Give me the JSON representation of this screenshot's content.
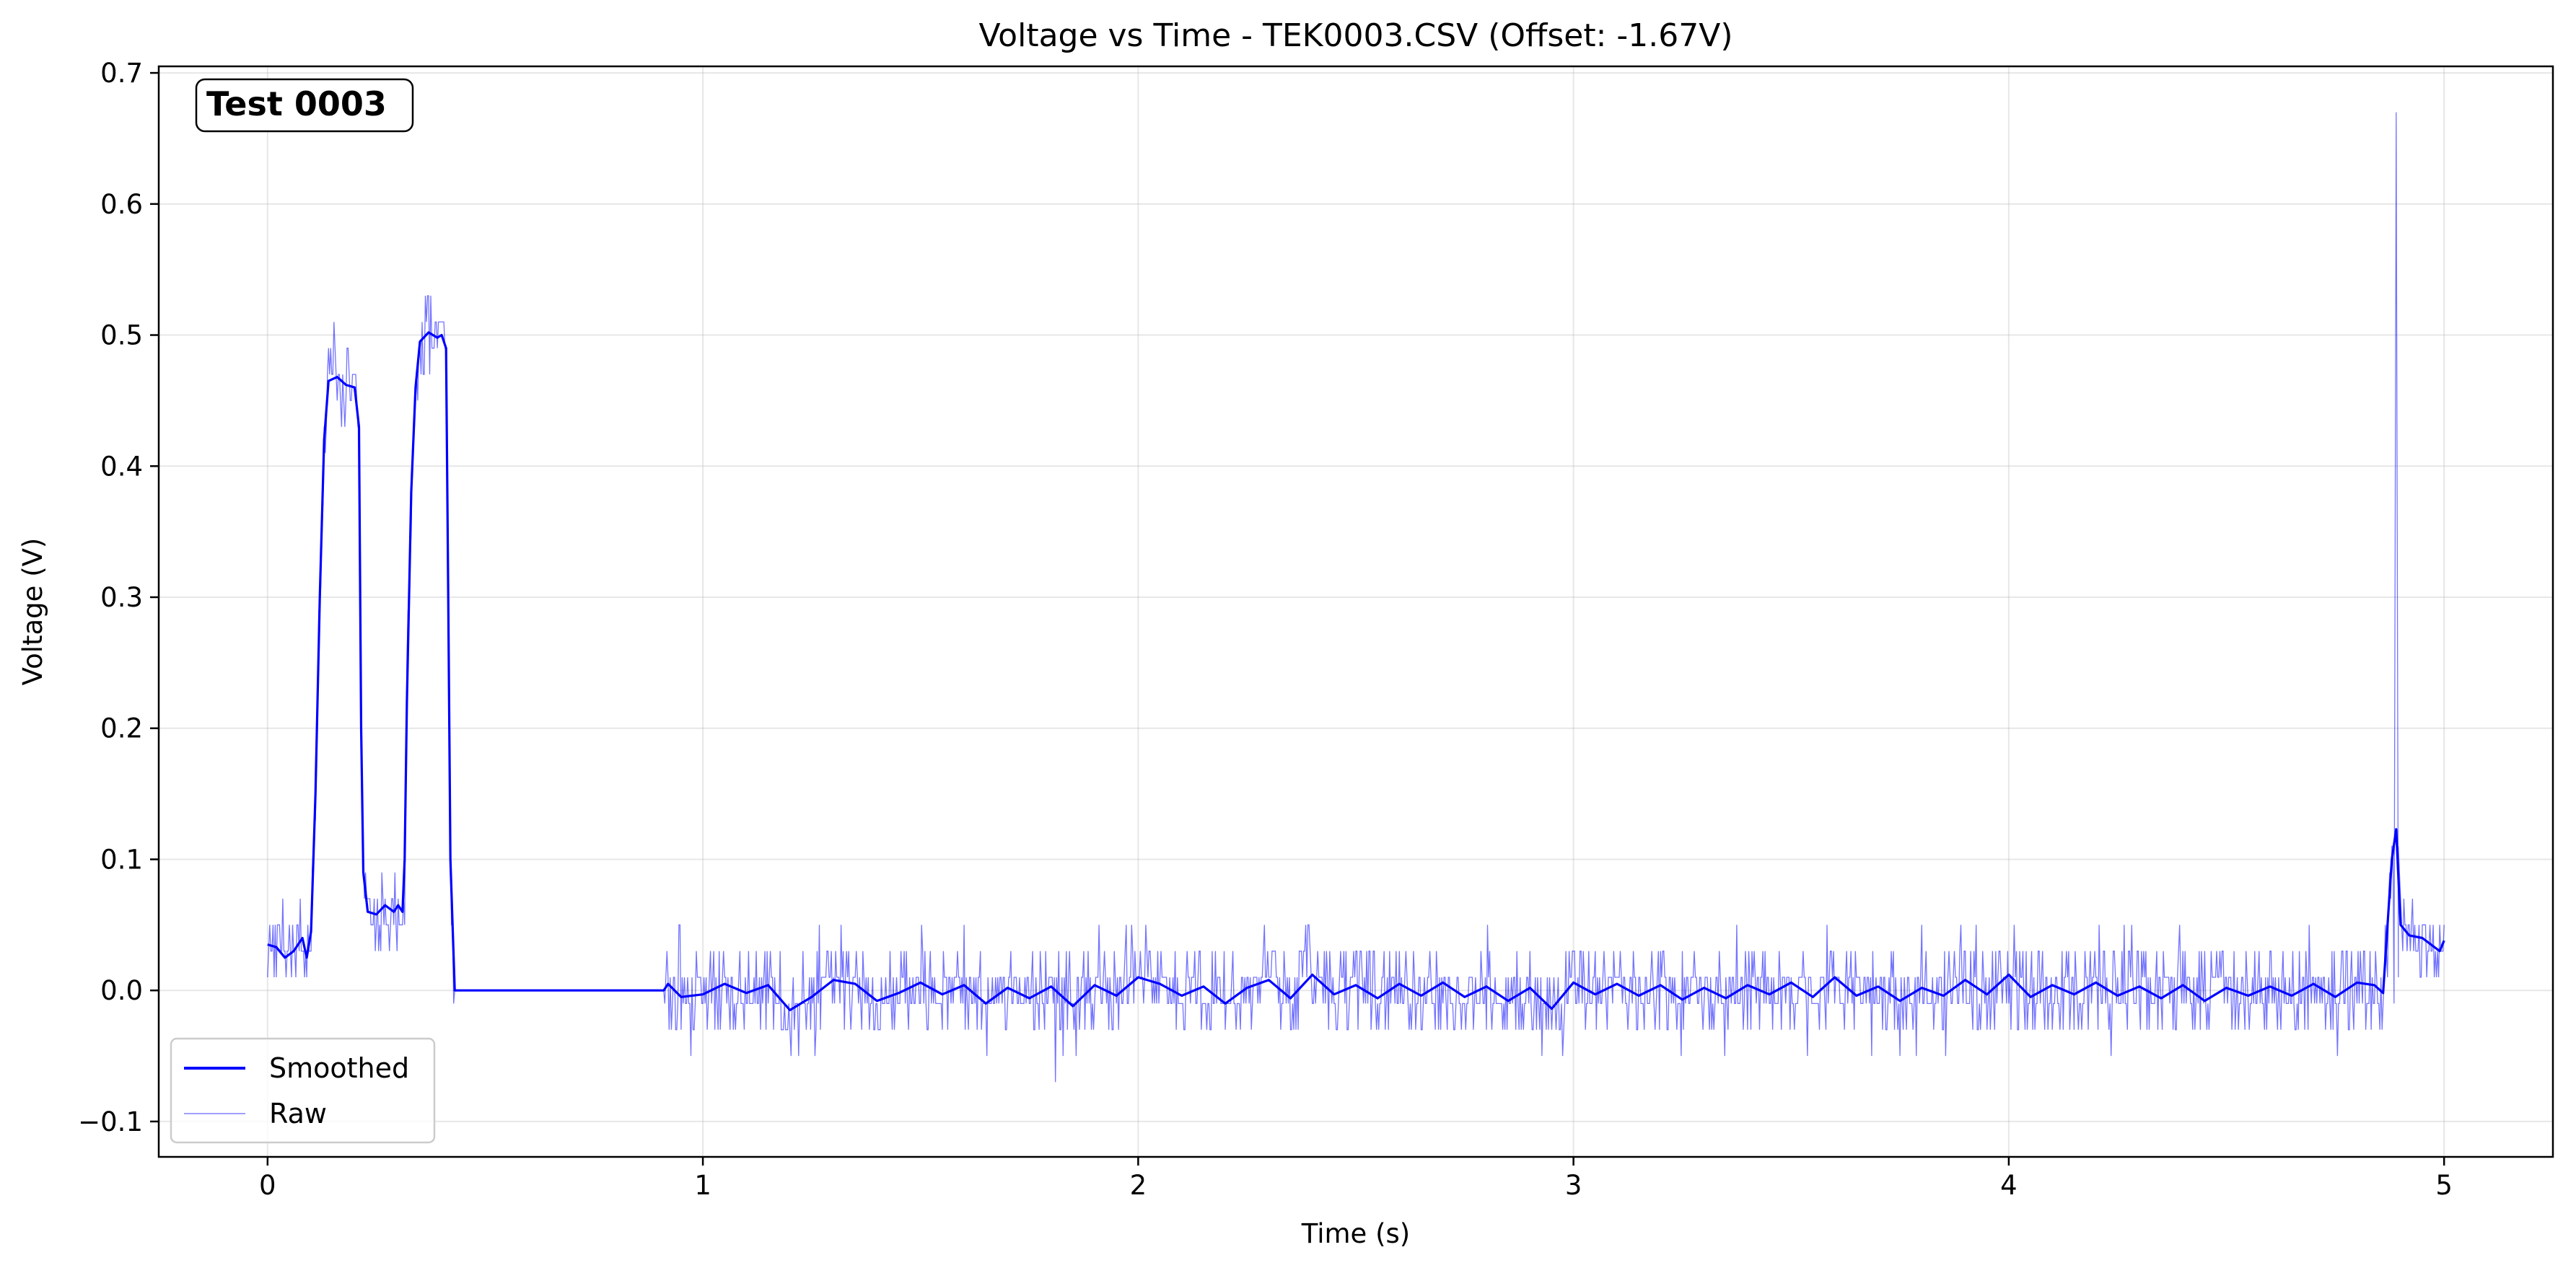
{
  "chart_data": {
    "type": "line",
    "title": "Voltage vs Time - TEK0003.CSV (Offset: -1.67V)",
    "xlabel": "Time (s)",
    "ylabel": "Voltage (V)",
    "xlim": [
      -0.25,
      5.25
    ],
    "ylim": [
      -0.127,
      0.705
    ],
    "x_ticks": [
      0,
      1,
      2,
      3,
      4,
      5
    ],
    "x_tick_labels": [
      "0",
      "1",
      "2",
      "3",
      "4",
      "5"
    ],
    "y_ticks": [
      -0.1,
      0.0,
      0.1,
      0.2,
      0.3,
      0.4,
      0.5,
      0.6,
      0.7
    ],
    "y_tick_labels": [
      "−0.1",
      "0.0",
      "0.1",
      "0.2",
      "0.3",
      "0.4",
      "0.5",
      "0.6",
      "0.7"
    ],
    "grid": true,
    "legend_position": "lower-left",
    "annotation": "Test 0003",
    "series": [
      {
        "name": "Smoothed",
        "color": "#0000ff",
        "style": "solid",
        "points": [
          [
            0.0,
            0.035
          ],
          [
            0.02,
            0.033
          ],
          [
            0.04,
            0.025
          ],
          [
            0.06,
            0.03
          ],
          [
            0.08,
            0.04
          ],
          [
            0.09,
            0.025
          ],
          [
            0.1,
            0.045
          ],
          [
            0.11,
            0.15
          ],
          [
            0.12,
            0.3
          ],
          [
            0.13,
            0.42
          ],
          [
            0.14,
            0.465
          ],
          [
            0.16,
            0.468
          ],
          [
            0.18,
            0.462
          ],
          [
            0.2,
            0.46
          ],
          [
            0.21,
            0.43
          ],
          [
            0.215,
            0.2
          ],
          [
            0.22,
            0.09
          ],
          [
            0.23,
            0.06
          ],
          [
            0.25,
            0.058
          ],
          [
            0.27,
            0.065
          ],
          [
            0.29,
            0.06
          ],
          [
            0.3,
            0.065
          ],
          [
            0.31,
            0.06
          ],
          [
            0.315,
            0.1
          ],
          [
            0.32,
            0.22
          ],
          [
            0.33,
            0.38
          ],
          [
            0.34,
            0.46
          ],
          [
            0.35,
            0.495
          ],
          [
            0.37,
            0.502
          ],
          [
            0.39,
            0.498
          ],
          [
            0.4,
            0.5
          ],
          [
            0.41,
            0.49
          ],
          [
            0.415,
            0.3
          ],
          [
            0.42,
            0.1
          ],
          [
            0.43,
            0.0
          ],
          [
            0.91,
            0.0
          ],
          [
            0.92,
            0.005
          ],
          [
            0.95,
            -0.005
          ],
          [
            1.0,
            -0.003
          ],
          [
            1.05,
            0.005
          ],
          [
            1.1,
            -0.002
          ],
          [
            1.15,
            0.004
          ],
          [
            1.2,
            -0.015
          ],
          [
            1.25,
            -0.005
          ],
          [
            1.3,
            0.008
          ],
          [
            1.35,
            0.005
          ],
          [
            1.4,
            -0.008
          ],
          [
            1.45,
            -0.002
          ],
          [
            1.5,
            0.006
          ],
          [
            1.55,
            -0.003
          ],
          [
            1.6,
            0.004
          ],
          [
            1.65,
            -0.01
          ],
          [
            1.7,
            0.002
          ],
          [
            1.75,
            -0.006
          ],
          [
            1.8,
            0.003
          ],
          [
            1.85,
            -0.012
          ],
          [
            1.9,
            0.004
          ],
          [
            1.95,
            -0.004
          ],
          [
            2.0,
            0.01
          ],
          [
            2.05,
            0.005
          ],
          [
            2.1,
            -0.004
          ],
          [
            2.15,
            0.003
          ],
          [
            2.2,
            -0.01
          ],
          [
            2.25,
            0.002
          ],
          [
            2.3,
            0.008
          ],
          [
            2.35,
            -0.006
          ],
          [
            2.4,
            0.012
          ],
          [
            2.45,
            -0.003
          ],
          [
            2.5,
            0.004
          ],
          [
            2.55,
            -0.006
          ],
          [
            2.6,
            0.005
          ],
          [
            2.65,
            -0.004
          ],
          [
            2.7,
            0.006
          ],
          [
            2.75,
            -0.005
          ],
          [
            2.8,
            0.003
          ],
          [
            2.85,
            -0.008
          ],
          [
            2.9,
            0.002
          ],
          [
            2.95,
            -0.014
          ],
          [
            3.0,
            0.006
          ],
          [
            3.05,
            -0.003
          ],
          [
            3.1,
            0.005
          ],
          [
            3.15,
            -0.004
          ],
          [
            3.2,
            0.004
          ],
          [
            3.25,
            -0.007
          ],
          [
            3.3,
            0.002
          ],
          [
            3.35,
            -0.006
          ],
          [
            3.4,
            0.004
          ],
          [
            3.45,
            -0.003
          ],
          [
            3.5,
            0.006
          ],
          [
            3.55,
            -0.005
          ],
          [
            3.6,
            0.01
          ],
          [
            3.65,
            -0.004
          ],
          [
            3.7,
            0.003
          ],
          [
            3.75,
            -0.008
          ],
          [
            3.8,
            0.002
          ],
          [
            3.85,
            -0.004
          ],
          [
            3.9,
            0.008
          ],
          [
            3.95,
            -0.003
          ],
          [
            4.0,
            0.012
          ],
          [
            4.05,
            -0.005
          ],
          [
            4.1,
            0.004
          ],
          [
            4.15,
            -0.003
          ],
          [
            4.2,
            0.006
          ],
          [
            4.25,
            -0.004
          ],
          [
            4.3,
            0.003
          ],
          [
            4.35,
            -0.006
          ],
          [
            4.4,
            0.004
          ],
          [
            4.45,
            -0.008
          ],
          [
            4.5,
            0.002
          ],
          [
            4.55,
            -0.004
          ],
          [
            4.6,
            0.003
          ],
          [
            4.65,
            -0.004
          ],
          [
            4.7,
            0.005
          ],
          [
            4.75,
            -0.005
          ],
          [
            4.8,
            0.006
          ],
          [
            4.84,
            0.004
          ],
          [
            4.86,
            -0.002
          ],
          [
            4.87,
            0.05
          ],
          [
            4.88,
            0.1
          ],
          [
            4.89,
            0.123
          ],
          [
            4.9,
            0.05
          ],
          [
            4.92,
            0.042
          ],
          [
            4.95,
            0.04
          ],
          [
            4.97,
            0.035
          ],
          [
            4.99,
            0.03
          ],
          [
            5.0,
            0.038
          ]
        ]
      },
      {
        "name": "Raw",
        "color": "#0000ff",
        "style": "thin-transparent",
        "spike_points": [
          [
            4.885,
            -0.01
          ],
          [
            4.89,
            0.67
          ],
          [
            4.895,
            0.01
          ]
        ],
        "noise_amplitude": 0.03
      }
    ]
  }
}
